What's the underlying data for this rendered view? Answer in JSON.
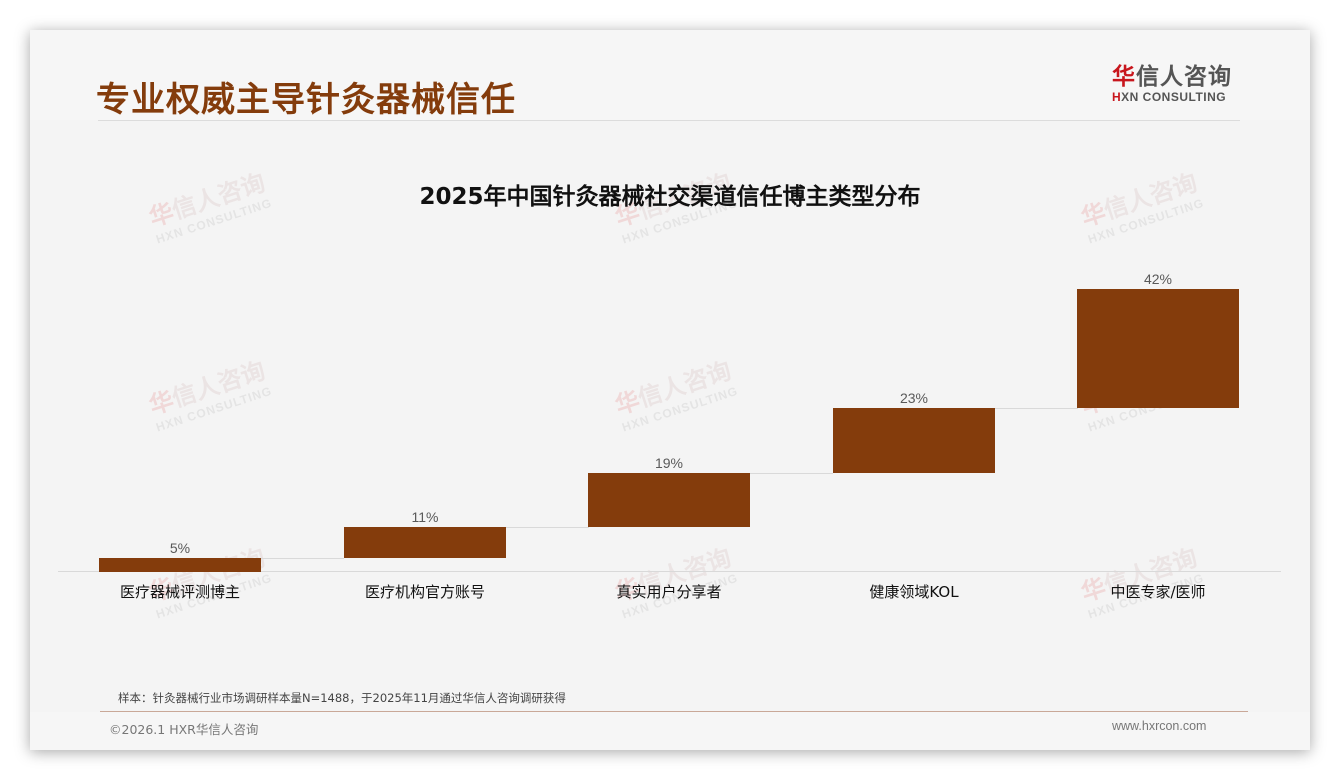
{
  "header": {
    "page_title": "专业权威主导针灸器械信任",
    "logo": {
      "cn_red": "华",
      "cn_rest": "信人咨询",
      "en_red": "H",
      "en_rest": "XN CONSULTING"
    }
  },
  "chart": {
    "title": "2025年中国针灸器械社交渠道信任博主类型分布",
    "bar_color": "#843c0c",
    "items": [
      {
        "label": "医疗器械评测博主",
        "value_label": "5%"
      },
      {
        "label": "医疗机构官方账号",
        "value_label": "11%"
      },
      {
        "label": "真实用户分享者",
        "value_label": "19%"
      },
      {
        "label": "健康领域KOL",
        "value_label": "23%"
      },
      {
        "label": "中医专家/医师",
        "value_label": "42%"
      }
    ]
  },
  "chart_data": {
    "type": "bar",
    "subtype": "waterfall",
    "title": "2025年中国针灸器械社交渠道信任博主类型分布",
    "categories": [
      "医疗器械评测博主",
      "医疗机构官方账号",
      "真实用户分享者",
      "健康领域KOL",
      "中医专家/医师"
    ],
    "values": [
      5,
      11,
      19,
      23,
      42
    ],
    "unit": "%",
    "cumulative_total": 100,
    "xlabel": "",
    "ylabel": "",
    "ylim": [
      0,
      100
    ],
    "grid": false,
    "legend": null,
    "data_labels": true,
    "color": "#843c0c"
  },
  "watermark": {
    "cn_red": "华",
    "cn_rest": "信人咨询",
    "en": "HXN CONSULTING"
  },
  "footer": {
    "note": "样本：针灸器械行业市场调研样本量N=1488，于2025年11月通过华信人咨询调研获得",
    "copyright": "©2026.1 HXR华信人咨询",
    "website": "www.hxrcon.com"
  }
}
